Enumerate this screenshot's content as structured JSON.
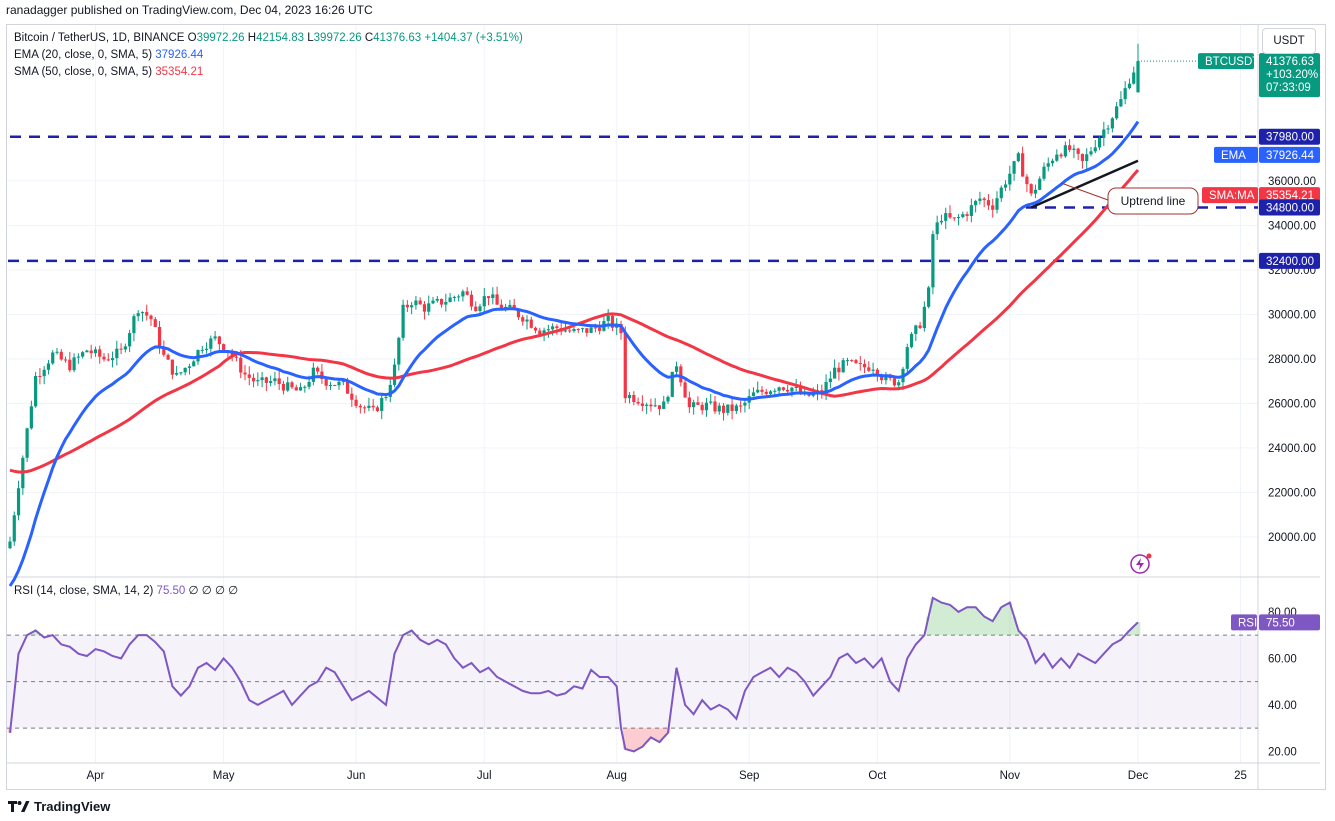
{
  "header": {
    "publisher": "ranadagger published on TradingView.com, Dec 04, 2023 16:26 UTC",
    "symbol": "Bitcoin / TetherUS, 1D, BINANCE",
    "ohlc": [
      {
        "label": "O",
        "value": "39972.26"
      },
      {
        "label": "H",
        "value": "42154.83"
      },
      {
        "label": "L",
        "value": "39972.26"
      },
      {
        "label": "C",
        "value": "41376.63"
      }
    ],
    "change": "+1404.37 (+3.51%)"
  },
  "indicators": {
    "ema": {
      "label": "EMA (20, close, 0, SMA, 5)",
      "value": "37926.44",
      "tag": "EMA",
      "color": "#2962ff"
    },
    "sma": {
      "label": "SMA (50, close, 0, SMA, 5)",
      "value": "35354.21",
      "tag": "SMA:MA",
      "color": "#f23645"
    },
    "rsi": {
      "label": "RSI (14, close, SMA, 14, 2)",
      "value": "75.50",
      "nan": "∅ ∅ ∅ ∅",
      "tag": "RSI",
      "color": "#7e57c2"
    }
  },
  "currency_button": "USDT",
  "price_tag": {
    "symbol": "BTCUSDT",
    "price": "41376.63",
    "change": "+103.20%",
    "countdown": "07:33:09"
  },
  "levels": [
    {
      "label": "37980.00",
      "value": 37980
    },
    {
      "label": "34800.00",
      "value": 34800
    },
    {
      "label": "32400.00",
      "value": 32400
    }
  ],
  "annotation": {
    "text": "Uptrend line"
  },
  "footer": {
    "brand": "TradingView"
  },
  "colors": {
    "up": "#089981",
    "down": "#f23645",
    "level": "#1e22aa",
    "rsi_band": "#7e57c2",
    "trendline": "#131722"
  },
  "chart_data": {
    "type": "candlestick",
    "title": "Bitcoin / TetherUS, 1D, BINANCE",
    "y_ticks": [
      "20000.00",
      "22000.00",
      "24000.00",
      "26000.00",
      "28000.00",
      "30000.00",
      "32000.00",
      "34000.00",
      "36000.00"
    ],
    "ylim": [
      18200,
      43000
    ],
    "x_ticks": [
      {
        "label": "Apr",
        "day": 20
      },
      {
        "label": "May",
        "day": 50
      },
      {
        "label": "Jun",
        "day": 81
      },
      {
        "label": "Jul",
        "day": 111
      },
      {
        "label": "Aug",
        "day": 142
      },
      {
        "label": "Sep",
        "day": 173
      },
      {
        "label": "Oct",
        "day": 203
      },
      {
        "label": "Nov",
        "day": 234
      },
      {
        "label": "Dec",
        "day": 264
      },
      {
        "label": "25",
        "day": 288
      }
    ],
    "anchors": [
      [
        0,
        19800
      ],
      [
        2,
        22400
      ],
      [
        4,
        24800
      ],
      [
        6,
        27200
      ],
      [
        10,
        28200
      ],
      [
        14,
        27700
      ],
      [
        18,
        28400
      ],
      [
        22,
        28000
      ],
      [
        26,
        28300
      ],
      [
        30,
        30300
      ],
      [
        33,
        29800
      ],
      [
        36,
        28100
      ],
      [
        39,
        27200
      ],
      [
        42,
        27800
      ],
      [
        45,
        28600
      ],
      [
        48,
        28900
      ],
      [
        51,
        28400
      ],
      [
        55,
        27300
      ],
      [
        58,
        26900
      ],
      [
        62,
        27000
      ],
      [
        65,
        26700
      ],
      [
        68,
        26500
      ],
      [
        71,
        27400
      ],
      [
        74,
        27000
      ],
      [
        78,
        26800
      ],
      [
        82,
        25900
      ],
      [
        85,
        25600
      ],
      [
        88,
        26400
      ],
      [
        90,
        27600
      ],
      [
        92,
        30200
      ],
      [
        94,
        30600
      ],
      [
        97,
        30300
      ],
      [
        100,
        30500
      ],
      [
        103,
        30700
      ],
      [
        106,
        31000
      ],
      [
        109,
        30400
      ],
      [
        112,
        30900
      ],
      [
        114,
        30400
      ],
      [
        117,
        30200
      ],
      [
        120,
        29900
      ],
      [
        124,
        29300
      ],
      [
        128,
        29400
      ],
      [
        132,
        29200
      ],
      [
        136,
        29300
      ],
      [
        140,
        29700
      ],
      [
        143,
        29200
      ],
      [
        144,
        26400
      ],
      [
        147,
        26200
      ],
      [
        150,
        26000
      ],
      [
        153,
        25900
      ],
      [
        156,
        27800
      ],
      [
        159,
        25800
      ],
      [
        163,
        25900
      ],
      [
        167,
        25700
      ],
      [
        171,
        25800
      ],
      [
        174,
        26400
      ],
      [
        177,
        26600
      ],
      [
        180,
        26800
      ],
      [
        183,
        26700
      ],
      [
        186,
        26300
      ],
      [
        190,
        26500
      ],
      [
        193,
        27500
      ],
      [
        196,
        27800
      ],
      [
        199,
        27600
      ],
      [
        202,
        27700
      ],
      [
        205,
        27000
      ],
      [
        208,
        27000
      ],
      [
        210,
        28600
      ],
      [
        213,
        29600
      ],
      [
        215,
        31000
      ],
      [
        216,
        33600
      ],
      [
        218,
        34400
      ],
      [
        221,
        34200
      ],
      [
        224,
        34600
      ],
      [
        227,
        35200
      ],
      [
        230,
        34900
      ],
      [
        233,
        36000
      ],
      [
        236,
        37000
      ],
      [
        239,
        35300
      ],
      [
        242,
        36500
      ],
      [
        245,
        37300
      ],
      [
        248,
        37400
      ],
      [
        251,
        36800
      ],
      [
        254,
        37700
      ],
      [
        257,
        38600
      ],
      [
        260,
        39600
      ],
      [
        262,
        40600
      ],
      [
        264,
        41376
      ]
    ],
    "last_candle": {
      "open": 39972.26,
      "high": 42154.83,
      "low": 39972.26,
      "close": 41376.63
    },
    "series": [
      {
        "name": "EMA (20, close, 0, SMA, 5)",
        "type": "ema",
        "period": 20
      },
      {
        "name": "SMA (50, close, 0, SMA, 5)",
        "type": "sma",
        "period": 50
      }
    ],
    "rsi": {
      "y_ticks": [
        "20.00",
        "40.00",
        "60.00",
        "80.00"
      ],
      "ylim": [
        15,
        95
      ],
      "bands": [
        30,
        50,
        70
      ],
      "anchors": [
        [
          0,
          28
        ],
        [
          2,
          62
        ],
        [
          4,
          70
        ],
        [
          6,
          72
        ],
        [
          8,
          69
        ],
        [
          10,
          70
        ],
        [
          12,
          66
        ],
        [
          14,
          65
        ],
        [
          16,
          62
        ],
        [
          18,
          61
        ],
        [
          20,
          64
        ],
        [
          22,
          63
        ],
        [
          24,
          61
        ],
        [
          26,
          60
        ],
        [
          28,
          66
        ],
        [
          30,
          70
        ],
        [
          32,
          70
        ],
        [
          34,
          67
        ],
        [
          36,
          63
        ],
        [
          38,
          48
        ],
        [
          40,
          44
        ],
        [
          42,
          48
        ],
        [
          44,
          56
        ],
        [
          46,
          58
        ],
        [
          48,
          55
        ],
        [
          50,
          60
        ],
        [
          52,
          56
        ],
        [
          54,
          50
        ],
        [
          56,
          42
        ],
        [
          58,
          40
        ],
        [
          60,
          42
        ],
        [
          62,
          44
        ],
        [
          64,
          46
        ],
        [
          66,
          40
        ],
        [
          68,
          44
        ],
        [
          70,
          48
        ],
        [
          72,
          50
        ],
        [
          74,
          56
        ],
        [
          76,
          54
        ],
        [
          78,
          48
        ],
        [
          80,
          42
        ],
        [
          82,
          44
        ],
        [
          84,
          46
        ],
        [
          86,
          43
        ],
        [
          88,
          40
        ],
        [
          90,
          62
        ],
        [
          92,
          70
        ],
        [
          94,
          72
        ],
        [
          96,
          68
        ],
        [
          98,
          66
        ],
        [
          100,
          68
        ],
        [
          102,
          66
        ],
        [
          104,
          60
        ],
        [
          106,
          56
        ],
        [
          108,
          58
        ],
        [
          110,
          54
        ],
        [
          112,
          56
        ],
        [
          114,
          52
        ],
        [
          116,
          50
        ],
        [
          118,
          48
        ],
        [
          120,
          46
        ],
        [
          122,
          45
        ],
        [
          124,
          45
        ],
        [
          126,
          46
        ],
        [
          128,
          44
        ],
        [
          130,
          45
        ],
        [
          132,
          48
        ],
        [
          134,
          47
        ],
        [
          136,
          55
        ],
        [
          138,
          52
        ],
        [
          140,
          52
        ],
        [
          142,
          48
        ],
        [
          143,
          30
        ],
        [
          144,
          21
        ],
        [
          146,
          20
        ],
        [
          148,
          22
        ],
        [
          150,
          26
        ],
        [
          152,
          24
        ],
        [
          154,
          28
        ],
        [
          156,
          56
        ],
        [
          158,
          40
        ],
        [
          160,
          36
        ],
        [
          162,
          42
        ],
        [
          164,
          38
        ],
        [
          166,
          40
        ],
        [
          168,
          38
        ],
        [
          170,
          34
        ],
        [
          172,
          46
        ],
        [
          174,
          52
        ],
        [
          176,
          54
        ],
        [
          178,
          56
        ],
        [
          180,
          52
        ],
        [
          182,
          56
        ],
        [
          184,
          54
        ],
        [
          186,
          50
        ],
        [
          188,
          44
        ],
        [
          190,
          48
        ],
        [
          192,
          52
        ],
        [
          194,
          60
        ],
        [
          196,
          62
        ],
        [
          198,
          58
        ],
        [
          200,
          60
        ],
        [
          202,
          56
        ],
        [
          204,
          60
        ],
        [
          206,
          50
        ],
        [
          208,
          46
        ],
        [
          210,
          60
        ],
        [
          212,
          66
        ],
        [
          214,
          70
        ],
        [
          216,
          86
        ],
        [
          218,
          84
        ],
        [
          220,
          83
        ],
        [
          222,
          80
        ],
        [
          224,
          82
        ],
        [
          226,
          82
        ],
        [
          228,
          78
        ],
        [
          230,
          76
        ],
        [
          232,
          82
        ],
        [
          234,
          84
        ],
        [
          236,
          72
        ],
        [
          238,
          68
        ],
        [
          240,
          58
        ],
        [
          242,
          62
        ],
        [
          244,
          56
        ],
        [
          246,
          60
        ],
        [
          248,
          56
        ],
        [
          250,
          62
        ],
        [
          252,
          60
        ],
        [
          254,
          58
        ],
        [
          256,
          62
        ],
        [
          258,
          66
        ],
        [
          260,
          68
        ],
        [
          262,
          72
        ],
        [
          264,
          75.5
        ]
      ]
    }
  }
}
